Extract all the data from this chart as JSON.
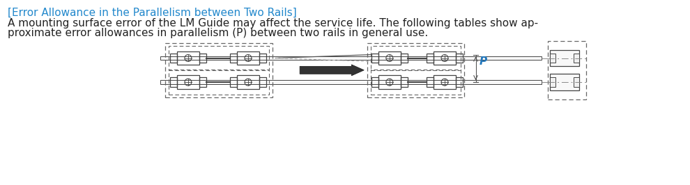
{
  "title_line1": "[Error Allowance in the Parallelism between Two Rails]",
  "body_line1": "A mounting surface error of the LM Guide may affect the service life. The following tables show ap-",
  "body_line2": "proximate error allowances in parallelism (P) between two rails in general use.",
  "title_color": "#2288cc",
  "body_color": "#222222",
  "bg_color": "#ffffff",
  "title_fontsize": 11.0,
  "body_fontsize": 11.0,
  "fig_width": 9.9,
  "fig_height": 2.66,
  "line_color": "#444444",
  "dash_color": "#666666",
  "P_color": "#2277bb"
}
